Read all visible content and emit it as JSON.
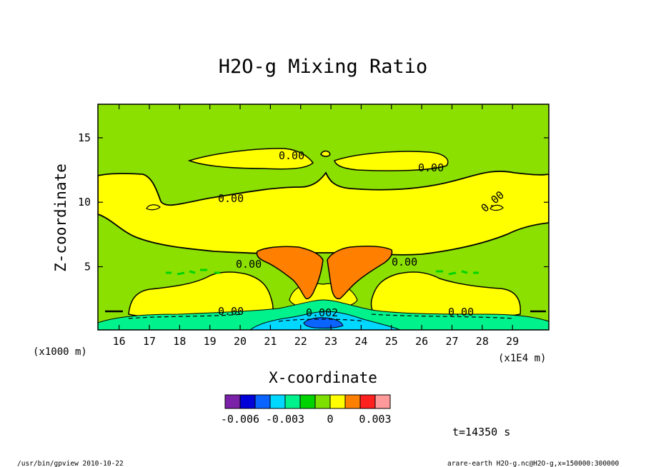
{
  "chart_data": {
    "type": "heatmap",
    "title": "H2O-g Mixing Ratio",
    "xlabel": "X-coordinate",
    "ylabel": "Z-coordinate",
    "x_unit": "(x1E4 m)",
    "y_unit": "(x1000 m)",
    "xlim": [
      15.3,
      30.2
    ],
    "ylim": [
      0.1,
      17.6
    ],
    "xticks": [
      "16",
      "17",
      "18",
      "19",
      "20",
      "21",
      "22",
      "23",
      "24",
      "25",
      "26",
      "27",
      "28",
      "29"
    ],
    "yticks": [
      "5",
      "10",
      "15"
    ],
    "contour_labels": [
      "0.00",
      "0.00",
      "0.00",
      "0.00",
      "0.00",
      "0.00",
      "0.00",
      "0.00",
      "0.002"
    ],
    "colorbar": {
      "colors": [
        "#7b20a8",
        "#0000d8",
        "#0a64ff",
        "#00d8ff",
        "#00f28c",
        "#00d400",
        "#7ee000",
        "#ffff00",
        "#ff8000",
        "#ff2020",
        "#ff9a9a"
      ],
      "tick_labels": [
        "-0.006",
        "-0.003",
        "0",
        "0.003"
      ],
      "tick_values": [
        -0.006,
        -0.003,
        0,
        0.003
      ]
    },
    "colors": {
      "background_field": "#8ce000",
      "moist_layer": "#ffff00",
      "plume": "#ff8000",
      "surface_negative": "#00d8ff",
      "surface_green": "#00f28c"
    }
  },
  "time_label": "t=14350 s",
  "footer_left": "/usr/bin/gpview   2010-10-22",
  "footer_right": "arare-earth_H2O-g.nc@H2O-g,x=150000:300000"
}
